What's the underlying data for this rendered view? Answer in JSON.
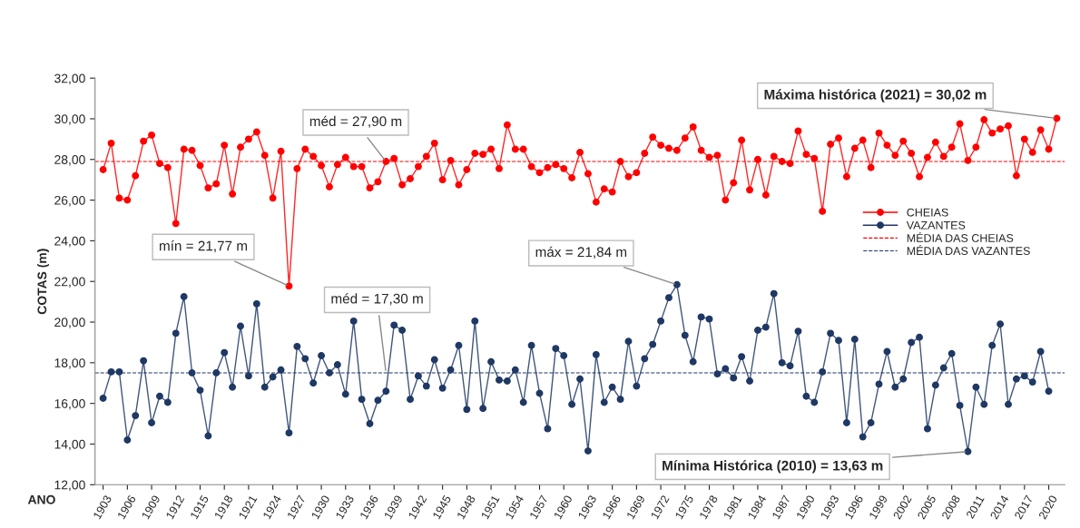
{
  "chart_data": {
    "type": "line",
    "xlabel": "ANO",
    "ylabel": "COTAS (m)",
    "x": [
      1903,
      1904,
      1905,
      1906,
      1907,
      1908,
      1909,
      1910,
      1911,
      1912,
      1913,
      1914,
      1915,
      1916,
      1917,
      1918,
      1919,
      1920,
      1921,
      1922,
      1923,
      1924,
      1925,
      1926,
      1927,
      1928,
      1929,
      1930,
      1931,
      1932,
      1933,
      1934,
      1935,
      1936,
      1937,
      1938,
      1939,
      1940,
      1941,
      1942,
      1943,
      1944,
      1945,
      1946,
      1947,
      1948,
      1949,
      1950,
      1951,
      1952,
      1953,
      1954,
      1955,
      1956,
      1957,
      1958,
      1959,
      1960,
      1961,
      1962,
      1963,
      1964,
      1965,
      1966,
      1967,
      1968,
      1969,
      1970,
      1971,
      1972,
      1973,
      1974,
      1975,
      1976,
      1977,
      1978,
      1979,
      1980,
      1981,
      1982,
      1983,
      1984,
      1985,
      1986,
      1987,
      1988,
      1989,
      1990,
      1991,
      1992,
      1993,
      1994,
      1995,
      1996,
      1997,
      1998,
      1999,
      2000,
      2001,
      2002,
      2003,
      2004,
      2005,
      2006,
      2007,
      2008,
      2009,
      2010,
      2011,
      2012,
      2013,
      2014,
      2015,
      2016,
      2017,
      2018,
      2019,
      2020,
      2021
    ],
    "series": [
      {
        "name": "CHEIAS",
        "color": "#ff0000",
        "values": [
          27.5,
          28.8,
          26.1,
          26.0,
          27.2,
          28.9,
          29.2,
          27.8,
          27.6,
          24.85,
          28.5,
          28.45,
          27.7,
          26.6,
          26.8,
          28.7,
          26.3,
          28.6,
          29.0,
          29.35,
          28.2,
          26.1,
          28.4,
          21.77,
          27.55,
          28.5,
          28.15,
          27.7,
          26.65,
          27.75,
          28.1,
          27.65,
          27.65,
          26.6,
          26.9,
          27.9,
          28.05,
          26.75,
          27.05,
          27.65,
          28.15,
          28.8,
          27.0,
          27.95,
          26.75,
          27.5,
          28.3,
          28.25,
          28.5,
          27.55,
          29.7,
          28.5,
          28.5,
          27.65,
          27.35,
          27.6,
          27.75,
          27.55,
          27.1,
          28.35,
          27.3,
          25.9,
          26.55,
          26.4,
          27.9,
          27.15,
          27.35,
          28.3,
          29.1,
          28.7,
          28.55,
          28.45,
          29.05,
          29.6,
          28.45,
          28.1,
          28.2,
          26.0,
          26.85,
          28.95,
          26.5,
          28.0,
          26.25,
          28.15,
          27.9,
          27.8,
          29.4,
          28.25,
          28.05,
          25.45,
          28.75,
          29.05,
          27.15,
          28.55,
          28.95,
          27.6,
          29.3,
          28.7,
          28.2,
          28.9,
          28.3,
          27.15,
          28.1,
          28.85,
          28.15,
          28.6,
          29.75,
          27.95,
          28.6,
          29.95,
          29.3,
          29.5,
          29.65,
          27.2,
          29.0,
          28.35,
          29.45,
          28.5,
          30.02
        ]
      },
      {
        "name": "VAZANTES",
        "color": "#1f3864",
        "values": [
          16.25,
          17.55,
          17.55,
          14.2,
          15.4,
          18.1,
          15.05,
          16.35,
          16.05,
          19.45,
          21.25,
          17.5,
          16.65,
          14.4,
          17.5,
          18.5,
          16.8,
          19.8,
          17.35,
          20.9,
          16.8,
          17.3,
          17.65,
          14.55,
          18.8,
          18.2,
          17.0,
          18.35,
          17.5,
          17.9,
          16.45,
          20.05,
          16.2,
          15.0,
          16.15,
          16.6,
          19.85,
          19.6,
          16.2,
          17.35,
          16.85,
          18.15,
          16.75,
          17.65,
          18.85,
          15.7,
          20.05,
          15.75,
          18.05,
          17.15,
          17.1,
          17.65,
          16.05,
          18.85,
          16.5,
          14.75,
          18.7,
          18.35,
          15.95,
          17.2,
          13.66,
          18.4,
          16.05,
          16.8,
          16.2,
          19.05,
          16.85,
          18.2,
          18.9,
          20.05,
          21.2,
          21.84,
          19.35,
          18.05,
          20.25,
          20.15,
          17.45,
          17.7,
          17.25,
          18.3,
          17.1,
          19.6,
          19.75,
          21.4,
          18.0,
          17.85,
          19.55,
          16.35,
          16.05,
          17.55,
          19.45,
          19.1,
          15.05,
          19.15,
          14.35,
          15.05,
          16.95,
          18.55,
          16.8,
          17.2,
          19.0,
          19.25,
          14.75,
          16.9,
          17.75,
          18.45,
          15.9,
          13.63,
          16.8,
          15.95,
          18.85,
          19.9,
          15.95,
          17.2,
          17.35,
          17.05,
          18.55,
          16.6,
          null
        ]
      }
    ],
    "marker": "circle",
    "line_style": "solid",
    "ref_lines": [
      {
        "axis": "y",
        "value": 27.9,
        "label": "MÉDIA DAS CHEIAS",
        "color": "#ff0000",
        "line_style": "dashed"
      },
      {
        "axis": "y",
        "value": 17.5,
        "label": "MÉDIA DAS VAZANTES",
        "color": "#1f3864",
        "line_style": "dashed"
      }
    ],
    "annotations": [
      {
        "text": "méd = 27,90 m",
        "x": 1938,
        "y": 27.9
      },
      {
        "text": "mín = 21,77 m",
        "x": 1926,
        "y": 21.77
      },
      {
        "text": "méd = 17,30 m",
        "x": 1938,
        "y": 17.5
      },
      {
        "text": "máx = 21,84 m",
        "x": 1974,
        "y": 21.84
      },
      {
        "text": "Máxima histórica (2021) = 30,02 m",
        "x": 2021,
        "y": 30.02
      },
      {
        "text": "Mínima Histórica (2010) = 13,63 m",
        "x": 2010,
        "y": 13.63
      }
    ],
    "xlim": [
      1902,
      2022
    ],
    "xticks": [
      1903,
      1906,
      1909,
      1912,
      1915,
      1918,
      1921,
      1924,
      1927,
      1930,
      1933,
      1936,
      1939,
      1942,
      1945,
      1948,
      1951,
      1954,
      1957,
      1960,
      1963,
      1966,
      1969,
      1972,
      1975,
      1978,
      1981,
      1984,
      1987,
      1990,
      1993,
      1996,
      1999,
      2002,
      2005,
      2008,
      2011,
      2014,
      2017,
      2020
    ],
    "ylim": [
      12,
      32
    ],
    "yticks": [
      {
        "value": 12,
        "label": "12,00"
      },
      {
        "value": 14,
        "label": "14,00"
      },
      {
        "value": 16,
        "label": "16,00"
      },
      {
        "value": 18,
        "label": "18,00"
      },
      {
        "value": 20,
        "label": "20,00"
      },
      {
        "value": 22,
        "label": "22,00"
      },
      {
        "value": 24,
        "label": "24,00"
      },
      {
        "value": 26,
        "label": "26,00"
      },
      {
        "value": 28,
        "label": "28,00"
      },
      {
        "value": 30,
        "label": "30,00"
      },
      {
        "value": 32,
        "label": "32,00"
      }
    ],
    "grid": false,
    "legend": "right"
  }
}
